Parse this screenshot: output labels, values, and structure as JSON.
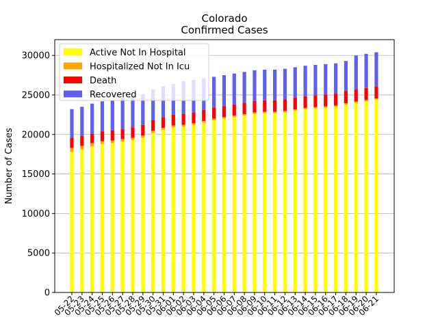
{
  "chart_data": {
    "type": "bar",
    "stacked": true,
    "title": "Colorado",
    "subtitle": "Confirmed Cases",
    "xlabel": "",
    "ylabel": "Number of Cases",
    "ylim": [
      0,
      32000
    ],
    "yticks": [
      0,
      5000,
      10000,
      15000,
      20000,
      25000,
      30000
    ],
    "grid": "horizontal",
    "legend_position": "top-left",
    "categories": [
      "05-22",
      "05-23",
      "05-24",
      "05-25",
      "05-26",
      "05-27",
      "05-28",
      "05-29",
      "05-30",
      "05-31",
      "06-01",
      "06-02",
      "06-03",
      "06-04",
      "06-05",
      "06-06",
      "06-07",
      "06-08",
      "06-09",
      "06-10",
      "06-11",
      "06-12",
      "06-13",
      "06-14",
      "06-15",
      "06-16",
      "06-17",
      "06-18",
      "06-19",
      "06-20",
      "06-21"
    ],
    "series": [
      {
        "name": "Active Not In Hospital",
        "color": "#ffff00",
        "values": [
          17800,
          18100,
          18500,
          18800,
          18900,
          19100,
          19300,
          19600,
          20200,
          20600,
          20900,
          21000,
          21200,
          21500,
          21800,
          22000,
          22200,
          22400,
          22600,
          22700,
          22700,
          22800,
          23000,
          23200,
          23300,
          23400,
          23500,
          23800,
          24000,
          24200,
          24400
        ]
      },
      {
        "name": "Hospitalized Not In Icu",
        "color": "#ffa500",
        "values": [
          500,
          450,
          400,
          350,
          330,
          300,
          280,
          260,
          250,
          240,
          230,
          220,
          210,
          200,
          200,
          190,
          190,
          180,
          180,
          170,
          170,
          170,
          170,
          160,
          160,
          160,
          160,
          160,
          160,
          160,
          160
        ]
      },
      {
        "name": "Death",
        "color": "#ff0000",
        "values": [
          1300,
          1250,
          1200,
          1250,
          1270,
          1300,
          1320,
          1340,
          1350,
          1360,
          1370,
          1380,
          1390,
          1400,
          1400,
          1410,
          1420,
          1430,
          1440,
          1450,
          1460,
          1470,
          1480,
          1490,
          1500,
          1500,
          1500,
          1510,
          1520,
          1520,
          1530
        ]
      },
      {
        "name": "Recovered",
        "color": "#6060ee",
        "values": [
          3600,
          3700,
          3800,
          3800,
          3800,
          3900,
          3900,
          3900,
          3900,
          3900,
          3900,
          4100,
          4100,
          4000,
          3900,
          3900,
          3900,
          3900,
          3900,
          3880,
          3870,
          3860,
          3850,
          3850,
          3840,
          3840,
          3840,
          3830,
          4320,
          4320,
          4310
        ]
      }
    ]
  }
}
